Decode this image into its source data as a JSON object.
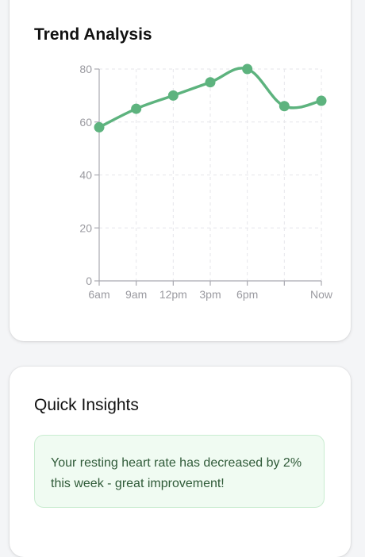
{
  "trend": {
    "title": "Trend Analysis"
  },
  "chart_data": {
    "type": "line",
    "categories": [
      "6am",
      "9am",
      "12pm",
      "3pm",
      "6pm",
      "",
      "Now"
    ],
    "series": [
      {
        "values": [
          58,
          65,
          70,
          75,
          80,
          66,
          68
        ]
      }
    ],
    "yticks": [
      0,
      20,
      40,
      60,
      80
    ],
    "ylim": [
      0,
      80
    ],
    "grid": true,
    "line_color": "#5db37e",
    "point_color": "#5db37e",
    "axis_color": "#a9a9b0",
    "grid_color": "#e6e6ea"
  },
  "insights": {
    "title": "Quick Insights",
    "message": "Your resting heart rate has decreased by 2% this week - great improvement!",
    "box_bg": "#f0fbf2",
    "box_border": "#c9ecd0",
    "text_color": "#2f5a38"
  }
}
